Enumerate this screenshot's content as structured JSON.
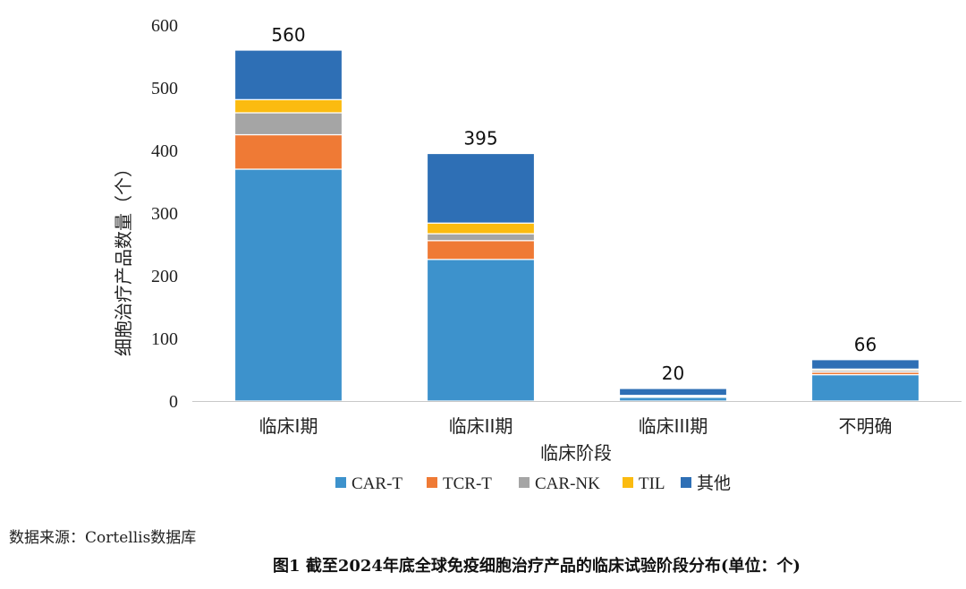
{
  "chart_data": {
    "type": "bar",
    "stacked": true,
    "categories": [
      "临床I期",
      "临床II期",
      "临床III期",
      "不明确"
    ],
    "series": [
      {
        "name": "CAR-T",
        "color": "#3d92cc",
        "values": [
          370,
          226,
          6,
          42
        ]
      },
      {
        "name": "TCR-T",
        "color": "#ef7a35",
        "values": [
          55,
          30,
          1,
          4
        ]
      },
      {
        "name": "CAR-NK",
        "color": "#a5a5a5",
        "values": [
          35,
          11,
          1,
          3
        ]
      },
      {
        "name": "TIL",
        "color": "#fbbb10",
        "values": [
          21,
          17,
          1,
          2
        ]
      },
      {
        "name": "其他",
        "color": "#2e6fb5",
        "values": [
          79,
          111,
          11,
          15
        ]
      }
    ],
    "totals": [
      "560",
      "395",
      "20",
      "66"
    ],
    "xlabel": "临床阶段",
    "ylabel": "细胞治疗产品数量（个）",
    "ylim": [
      0,
      600
    ],
    "yticks": [
      "0",
      "100",
      "200",
      "300",
      "400",
      "500",
      "600"
    ],
    "legend_position": "bottom",
    "grid": false
  },
  "source_note": "数据来源：Cortellis数据库",
  "caption": "图1  截至2024年底全球免疫细胞治疗产品的临床试验阶段分布(单位：个)"
}
